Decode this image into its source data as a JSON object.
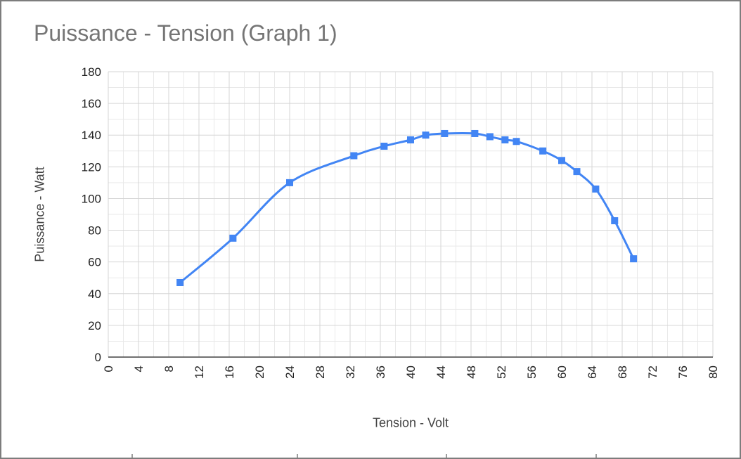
{
  "chart_data": {
    "type": "line",
    "title": "Puissance - Tension (Graph 1)",
    "xlabel": "Tension - Volt",
    "ylabel": "Puissance - Watt",
    "xlim": [
      0,
      80
    ],
    "ylim": [
      0,
      180
    ],
    "x_ticks": [
      0,
      4,
      8,
      12,
      16,
      20,
      24,
      28,
      32,
      36,
      40,
      44,
      48,
      52,
      56,
      60,
      64,
      68,
      72,
      76,
      80
    ],
    "y_ticks": [
      0,
      20,
      40,
      60,
      80,
      100,
      120,
      140,
      160,
      180
    ],
    "x_minor_step": 2,
    "y_minor_step": 10,
    "grid": true,
    "legend_position": "none",
    "series": [
      {
        "name": "Puissance",
        "color": "#4285f4",
        "marker": "square",
        "smooth": true,
        "x": [
          9.5,
          16.5,
          24,
          32.5,
          36.5,
          40,
          42,
          44.5,
          48.5,
          50.5,
          52.5,
          54,
          57.5,
          60,
          62,
          64.5,
          67,
          69.5
        ],
        "y": [
          47,
          75,
          110,
          127,
          133,
          137,
          140,
          141,
          141,
          139,
          137,
          136,
          130,
          124,
          117,
          106,
          86,
          62
        ]
      }
    ]
  },
  "colors": {
    "series": "#4285f4",
    "title_text": "#757575",
    "axis_title_text": "#424242",
    "tick_text": "#212121",
    "grid_major": "#d5d5d5",
    "grid_minor": "#e9e9e9",
    "axis_line": "#424242",
    "border": "#7d7d7d",
    "background": "#ffffff"
  }
}
